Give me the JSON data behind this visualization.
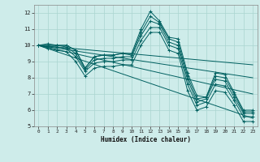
{
  "title": "",
  "xlabel": "Humidex (Indice chaleur)",
  "ylabel": "",
  "xlim": [
    -0.5,
    23.5
  ],
  "ylim": [
    5,
    12.5
  ],
  "yticks": [
    5,
    6,
    7,
    8,
    9,
    10,
    11,
    12
  ],
  "xticks": [
    0,
    1,
    2,
    3,
    4,
    5,
    6,
    7,
    8,
    9,
    10,
    11,
    12,
    13,
    14,
    15,
    16,
    17,
    18,
    19,
    20,
    21,
    22,
    23
  ],
  "background_color": "#ceecea",
  "grid_color": "#aad4d0",
  "line_color": "#006060",
  "series": [
    [
      10.0,
      10.1,
      10.0,
      10.0,
      9.7,
      8.6,
      9.3,
      9.4,
      9.4,
      9.5,
      9.5,
      11.0,
      12.1,
      11.5,
      10.5,
      10.4,
      8.3,
      6.9,
      6.8,
      8.3,
      8.2,
      7.1,
      6.0,
      6.0
    ],
    [
      10.0,
      10.0,
      10.0,
      10.0,
      9.7,
      8.6,
      9.3,
      9.4,
      9.4,
      9.5,
      9.4,
      10.8,
      11.8,
      11.4,
      10.4,
      10.2,
      8.1,
      6.7,
      6.8,
      8.1,
      8.0,
      7.0,
      5.9,
      5.9
    ],
    [
      10.0,
      10.0,
      10.0,
      9.9,
      9.5,
      8.5,
      9.1,
      9.2,
      9.2,
      9.3,
      9.3,
      10.6,
      11.5,
      11.3,
      10.2,
      10.0,
      7.9,
      6.5,
      6.7,
      7.9,
      7.8,
      6.8,
      5.8,
      5.8
    ],
    [
      10.0,
      9.9,
      9.9,
      9.8,
      9.3,
      8.4,
      8.9,
      9.0,
      9.0,
      9.1,
      9.1,
      10.3,
      11.1,
      11.1,
      10.0,
      9.8,
      7.6,
      6.3,
      6.5,
      7.6,
      7.5,
      6.6,
      5.6,
      5.6
    ],
    [
      10.0,
      9.8,
      9.7,
      9.6,
      9.0,
      8.1,
      8.6,
      8.7,
      8.7,
      8.8,
      8.8,
      10.0,
      10.8,
      10.8,
      9.7,
      9.5,
      7.2,
      6.0,
      6.2,
      7.2,
      7.1,
      6.3,
      5.3,
      5.3
    ]
  ],
  "regression_lines": [
    {
      "x0": 0,
      "y0": 10.0,
      "x1": 23,
      "y1": 5.5
    },
    {
      "x0": 0,
      "y0": 10.0,
      "x1": 23,
      "y1": 7.0
    },
    {
      "x0": 0,
      "y0": 10.0,
      "x1": 23,
      "y1": 8.0
    },
    {
      "x0": 0,
      "y0": 10.0,
      "x1": 23,
      "y1": 8.8
    }
  ]
}
